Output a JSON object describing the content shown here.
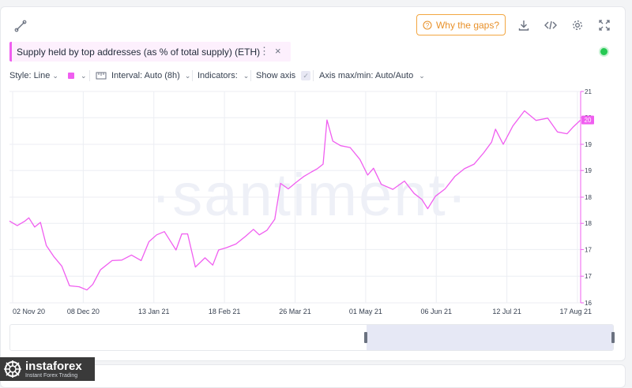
{
  "header": {
    "why_gaps_label": "Why the gaps?",
    "metric_tag_label": "Supply held by top addresses (as % of total supply) (ETH)",
    "metric_tag_menu": "⋮",
    "metric_tag_close": "×"
  },
  "toolbar": {
    "style_label": "Style: Line",
    "interval_label": "Interval: Auto (8h)",
    "indicators_label": "Indicators:",
    "show_axis_label": "Show axis",
    "axis_label": "Axis max/min: Auto/Auto"
  },
  "colors": {
    "series": "#f05ef0",
    "accent": "#e8912a",
    "live": "#26c953"
  },
  "watermark": {
    "chart": "·santiment·",
    "logo_brand": "instaforex",
    "logo_sub": "Instant Forex Trading"
  },
  "chart_data": {
    "type": "line",
    "title": "Supply held by top addresses (as % of total supply) (ETH)",
    "xlabel": "",
    "ylabel": "",
    "x_range": [
      "2020-10-26",
      "2021-08-17"
    ],
    "ylim": [
      16.0,
      20.6
    ],
    "x_tick_labels": [
      "02 Nov 20",
      "08 Dec 20",
      "13 Jan 21",
      "18 Feb 21",
      "26 Mar 21",
      "01 May 21",
      "06 Jun 21",
      "12 Jul 21",
      "17 Aug 21"
    ],
    "y_tick_labels": [
      "21",
      "20",
      "19",
      "19",
      "18",
      "18",
      "17",
      "17",
      "16"
    ],
    "y_tick_values": [
      20.6,
      20.03,
      19.45,
      18.88,
      18.3,
      17.73,
      17.16,
      16.58,
      16.0
    ],
    "current_value_label": "20",
    "current_value": 19.98,
    "series": [
      {
        "values": [
          [
            "2020-10-26",
            17.78
          ],
          [
            "2020-10-30",
            17.68
          ],
          [
            "2020-11-03",
            17.78
          ],
          [
            "2020-11-05",
            17.85
          ],
          [
            "2020-11-08",
            17.65
          ],
          [
            "2020-11-11",
            17.75
          ],
          [
            "2020-11-14",
            17.25
          ],
          [
            "2020-11-18",
            17.0
          ],
          [
            "2020-11-22",
            16.8
          ],
          [
            "2020-11-26",
            16.37
          ],
          [
            "2020-12-01",
            16.35
          ],
          [
            "2020-12-05",
            16.28
          ],
          [
            "2020-12-08",
            16.4
          ],
          [
            "2020-12-12",
            16.72
          ],
          [
            "2020-12-18",
            16.92
          ],
          [
            "2020-12-23",
            16.93
          ],
          [
            "2020-12-28",
            17.04
          ],
          [
            "2021-01-02",
            16.92
          ],
          [
            "2021-01-06",
            17.33
          ],
          [
            "2021-01-10",
            17.48
          ],
          [
            "2021-01-14",
            17.55
          ],
          [
            "2021-01-17",
            17.35
          ],
          [
            "2021-01-20",
            17.15
          ],
          [
            "2021-01-23",
            17.5
          ],
          [
            "2021-01-26",
            17.5
          ],
          [
            "2021-01-30",
            16.78
          ],
          [
            "2021-02-04",
            16.98
          ],
          [
            "2021-02-08",
            16.82
          ],
          [
            "2021-02-11",
            17.15
          ],
          [
            "2021-02-15",
            17.2
          ],
          [
            "2021-02-20",
            17.28
          ],
          [
            "2021-02-25",
            17.45
          ],
          [
            "2021-03-01",
            17.6
          ],
          [
            "2021-03-04",
            17.48
          ],
          [
            "2021-03-08",
            17.58
          ],
          [
            "2021-03-12",
            17.82
          ],
          [
            "2021-03-15",
            18.6
          ],
          [
            "2021-03-19",
            18.48
          ],
          [
            "2021-03-23",
            18.62
          ],
          [
            "2021-03-27",
            18.75
          ],
          [
            "2021-03-31",
            18.85
          ],
          [
            "2021-04-03",
            18.92
          ],
          [
            "2021-04-06",
            19.02
          ],
          [
            "2021-04-08",
            19.98
          ],
          [
            "2021-04-11",
            19.52
          ],
          [
            "2021-04-15",
            19.42
          ],
          [
            "2021-04-20",
            19.38
          ],
          [
            "2021-04-25",
            19.12
          ],
          [
            "2021-04-29",
            18.78
          ],
          [
            "2021-05-02",
            18.93
          ],
          [
            "2021-05-06",
            18.58
          ],
          [
            "2021-05-12",
            18.47
          ],
          [
            "2021-05-18",
            18.65
          ],
          [
            "2021-05-23",
            18.38
          ],
          [
            "2021-05-27",
            18.25
          ],
          [
            "2021-05-30",
            18.05
          ],
          [
            "2021-06-03",
            18.32
          ],
          [
            "2021-06-08",
            18.48
          ],
          [
            "2021-06-13",
            18.75
          ],
          [
            "2021-06-18",
            18.92
          ],
          [
            "2021-06-23",
            19.02
          ],
          [
            "2021-06-28",
            19.27
          ],
          [
            "2021-07-02",
            19.5
          ],
          [
            "2021-07-04",
            19.78
          ],
          [
            "2021-07-08",
            19.45
          ],
          [
            "2021-07-13",
            19.85
          ],
          [
            "2021-07-19",
            20.18
          ],
          [
            "2021-07-25",
            19.97
          ],
          [
            "2021-07-31",
            20.02
          ],
          [
            "2021-08-05",
            19.72
          ],
          [
            "2021-08-10",
            19.68
          ],
          [
            "2021-08-13",
            19.82
          ],
          [
            "2021-08-17",
            19.98
          ]
        ]
      }
    ]
  }
}
